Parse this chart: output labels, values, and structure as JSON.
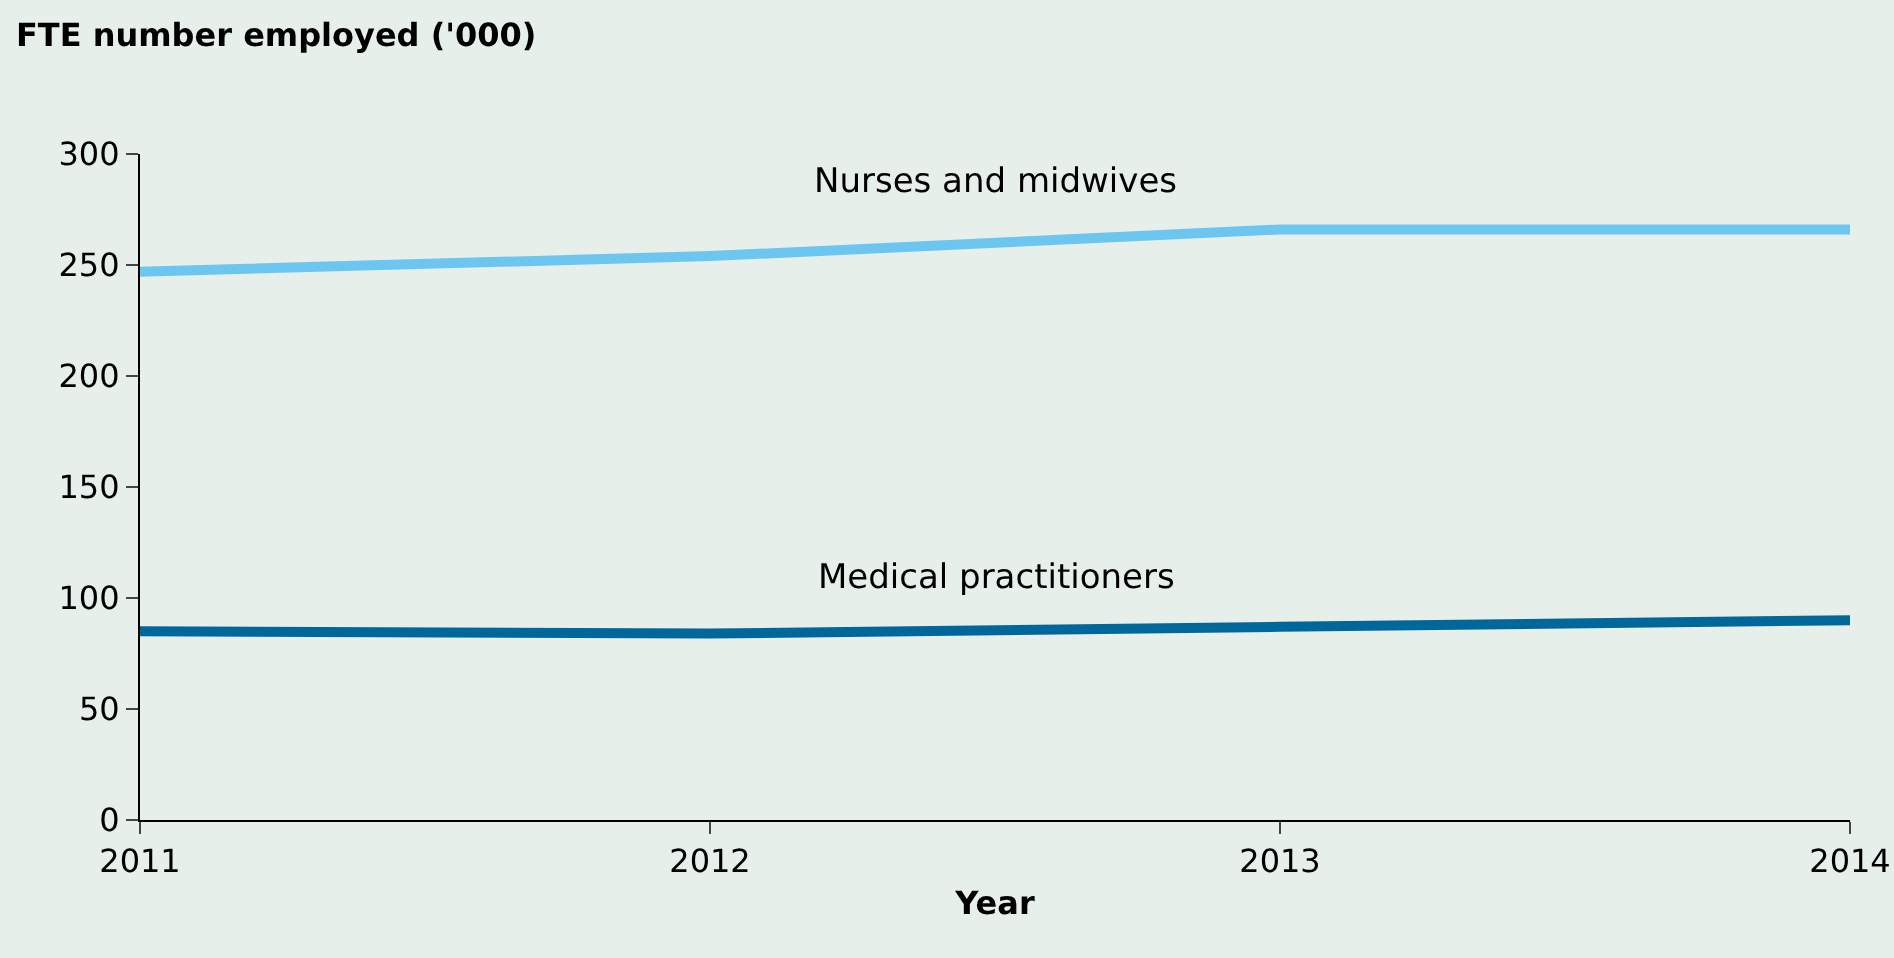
{
  "chart_data": {
    "type": "line",
    "ylabel": "FTE number employed ('000)",
    "xlabel": "Year",
    "x": [
      2011,
      2012,
      2013,
      2014
    ],
    "series": [
      {
        "name": "Nurses and midwives",
        "color": "#6dc6f0",
        "values": [
          247,
          254,
          266,
          266
        ]
      },
      {
        "name": "Medical practitioners",
        "color": "#00679a",
        "values": [
          85,
          84,
          87,
          90
        ]
      }
    ],
    "xlim": [
      2011,
      2014
    ],
    "xticks": [
      2011,
      2012,
      2013,
      2014
    ],
    "ylim": [
      0,
      300
    ],
    "yticks": [
      0,
      50,
      100,
      150,
      200,
      250,
      300
    ],
    "grid": false,
    "legend": false,
    "marker": "none",
    "line_style": "solid"
  }
}
